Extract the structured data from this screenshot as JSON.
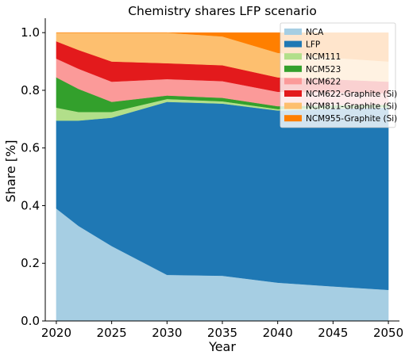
{
  "chart_data": {
    "type": "area",
    "stacked": true,
    "title": "Chemistry shares LFP scenario",
    "xlabel": "Year",
    "ylabel": "Share [%]",
    "xlim": [
      2019,
      2051
    ],
    "ylim": [
      0,
      1.05
    ],
    "xticks": [
      "2020",
      "2025",
      "2030",
      "2035",
      "2040",
      "2045",
      "2050"
    ],
    "yticks": [
      "0.0",
      "0.2",
      "0.4",
      "0.6",
      "0.8",
      "1.0"
    ],
    "grid": false,
    "legend_position": "top-right",
    "x": [
      2020,
      2022,
      2025,
      2030,
      2035,
      2040,
      2045,
      2050
    ],
    "series": [
      {
        "name": "NCA",
        "color": "#a6cee3",
        "values": [
          0.39,
          0.33,
          0.26,
          0.16,
          0.157,
          0.133,
          0.12,
          0.108
        ]
      },
      {
        "name": "LFP",
        "color": "#1f78b4",
        "values": [
          0.305,
          0.365,
          0.445,
          0.6,
          0.597,
          0.597,
          0.616,
          0.632
        ]
      },
      {
        "name": "NCM111",
        "color": "#b2df8a",
        "values": [
          0.045,
          0.03,
          0.02,
          0.01,
          0.008,
          0.005,
          0.004,
          0.003
        ]
      },
      {
        "name": "NCM523",
        "color": "#33a02c",
        "values": [
          0.105,
          0.08,
          0.035,
          0.012,
          0.012,
          0.01,
          0.008,
          0.007
        ]
      },
      {
        "name": "NCM622",
        "color": "#fb9a99",
        "values": [
          0.065,
          0.07,
          0.07,
          0.057,
          0.058,
          0.05,
          0.045,
          0.04
        ]
      },
      {
        "name": "NCM622-Graphite (Si)",
        "color": "#e31a1c",
        "values": [
          0.06,
          0.065,
          0.07,
          0.055,
          0.055,
          0.05,
          0.045,
          0.04
        ]
      },
      {
        "name": "NCM811-Graphite (Si)",
        "color": "#fdbf6f",
        "values": [
          0.03,
          0.06,
          0.1,
          0.106,
          0.1,
          0.085,
          0.075,
          0.07
        ]
      },
      {
        "name": "NCM955-Graphite (Si)",
        "color": "#ff7f00",
        "values": [
          0.0,
          0.0,
          0.0,
          0.0,
          0.013,
          0.07,
          0.087,
          0.1
        ]
      }
    ]
  }
}
